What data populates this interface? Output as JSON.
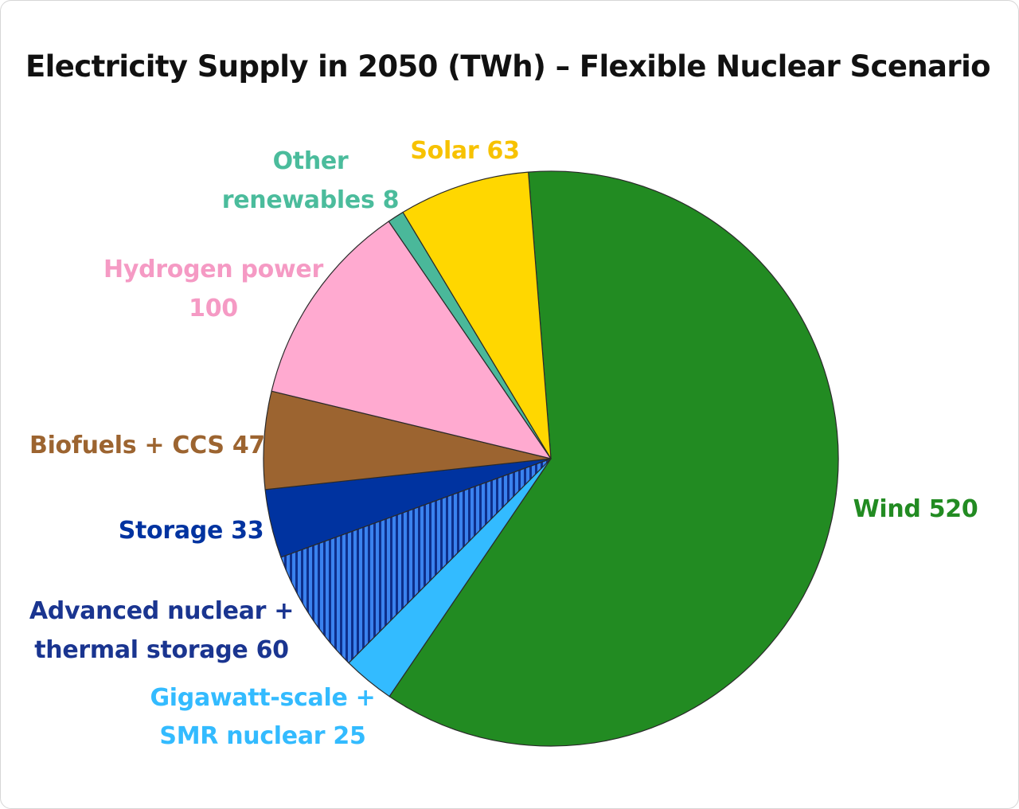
{
  "chart_data": {
    "type": "pie",
    "title": "Electricity Supply in 2050 (TWh) – Flexible Nuclear Scenario",
    "slices": [
      {
        "name": "Wind",
        "value": 520,
        "color": "#228b22",
        "label_lines": [
          "Wind 520"
        ]
      },
      {
        "name": "Gigawatt-scale + SMR nuclear",
        "value": 25,
        "color": "#33bbff",
        "label_lines": [
          "Gigawatt-scale +",
          "SMR nuclear 25"
        ]
      },
      {
        "name": "Advanced nuclear + thermal storage",
        "value": 60,
        "color": "#3a82ee",
        "pattern": "vertical-stripes",
        "stripe_color": "#0d2f8c",
        "label_color": "#1a3590",
        "label_lines": [
          "Advanced nuclear +",
          "thermal storage 60"
        ]
      },
      {
        "name": "Storage",
        "value": 33,
        "color": "#0033a0",
        "label_lines": [
          "Storage 33"
        ]
      },
      {
        "name": "Biofuels + CCS",
        "value": 47,
        "color": "#9c6430",
        "label_lines": [
          "Biofuels + CCS 47"
        ]
      },
      {
        "name": "Hydrogen power",
        "value": 100,
        "color": "#ffaad0",
        "label_color": "#f59ac4",
        "label_lines": [
          "Hydrogen power",
          "100"
        ]
      },
      {
        "name": "Other renewables",
        "value": 8,
        "color": "#4ab89a",
        "label_color": "#4bbc9c",
        "label_lines": [
          "Other",
          "renewables 8"
        ]
      },
      {
        "name": "Solar",
        "value": 63,
        "color": "#ffd700",
        "label_color": "#f7c200",
        "label_lines": [
          "Solar 63"
        ]
      }
    ]
  }
}
